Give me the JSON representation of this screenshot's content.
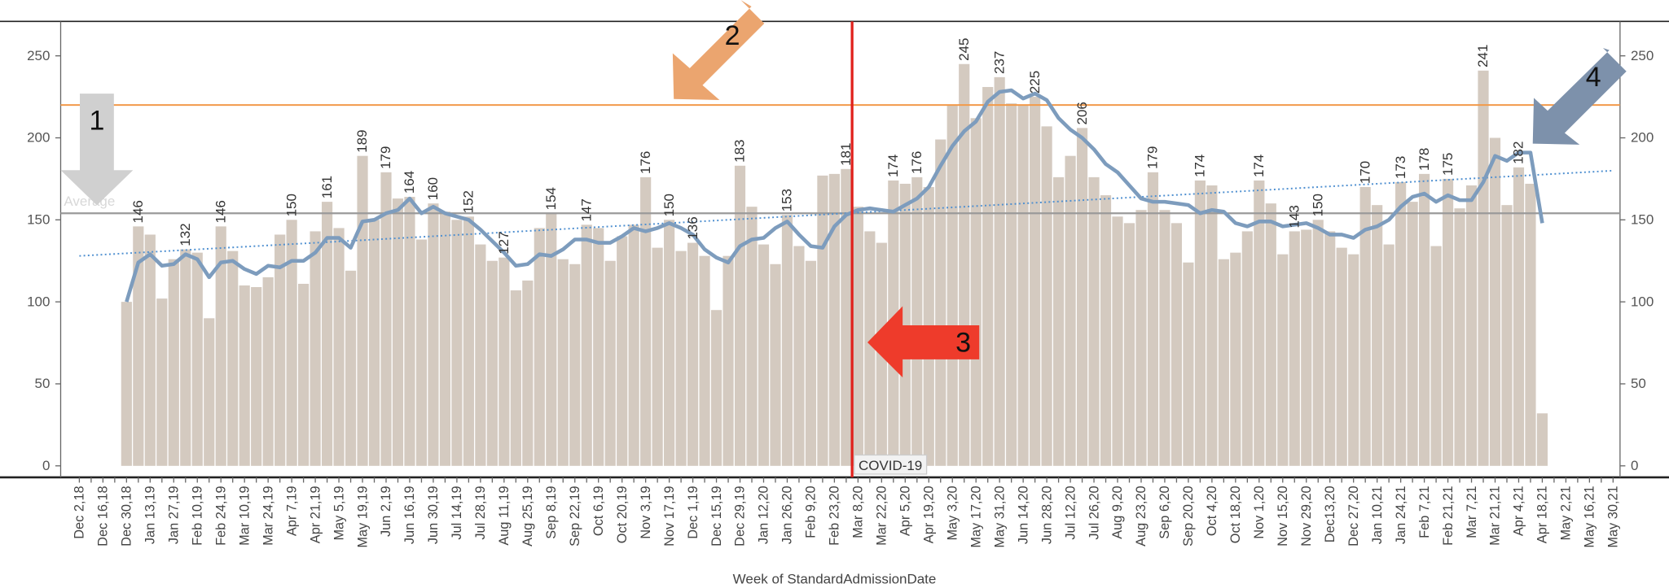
{
  "chart_data": {
    "type": "bar",
    "x_axis_label": "Week of StandardAdmissionDate",
    "categories": [
      "Dec 2,18",
      null,
      "Dec 16,18",
      null,
      "Dec 30,18",
      null,
      "Jan 13,19",
      null,
      "Jan 27,19",
      null,
      "Feb 10,19",
      null,
      "Feb 24,19",
      null,
      "Mar 10,19",
      null,
      "Mar 24,19",
      null,
      "Apr 7,19",
      null,
      "Apr 21,19",
      null,
      "May 5,19",
      null,
      "May 19,19",
      null,
      "Jun 2,19",
      null,
      "Jun 16,19",
      null,
      "Jun 30,19",
      null,
      "Jul 14,19",
      null,
      "Jul 28,19",
      null,
      "Aug 11,19",
      null,
      "Aug 25,19",
      null,
      "Sep 8,19",
      null,
      "Sep 22,19",
      null,
      "Oct 6,19",
      null,
      "Oct 20,19",
      null,
      "Nov 3,19",
      null,
      "Nov 17,19",
      null,
      "Dec 1,19",
      null,
      "Dec 15,19",
      null,
      "Dec 29,19",
      null,
      "Jan 12,20",
      null,
      "Jan 26,20",
      null,
      "Feb 9,20",
      null,
      "Feb 23,20",
      null,
      "Mar 8,20",
      null,
      "Mar 22,20",
      null,
      "Apr 5,20",
      null,
      "Apr 19,20",
      null,
      "May 3,20",
      null,
      "May 17,20",
      null,
      "May 31,20",
      null,
      "Jun 14,20",
      null,
      "Jun 28,20",
      null,
      "Jul 12,20",
      null,
      "Jul 26,20",
      null,
      "Aug 9,20",
      null,
      "Aug 23,20",
      null,
      "Sep 6,20",
      null,
      "Sep 20,20",
      null,
      "Oct 4,20",
      null,
      "Oct 18,20",
      null,
      "Nov 1,20",
      null,
      "Nov 15,20",
      null,
      "Nov 29,20",
      null,
      "Dec13,20",
      null,
      "Dec 27,20",
      null,
      "Jan 10,21",
      null,
      "Jan 24,21",
      null,
      "Feb 7,21",
      null,
      "Feb 21,21",
      null,
      "Mar 7,21",
      null,
      "Mar 21,21",
      null,
      "Apr 4,21",
      null,
      "Apr 18,21",
      null,
      "May 2,21",
      null,
      "May 16,21",
      null,
      "May 30,21"
    ],
    "series": [
      {
        "type": "bar",
        "color": "#d4cac0",
        "values": [
          null,
          null,
          null,
          null,
          100,
          146,
          141,
          102,
          126,
          132,
          130,
          90,
          146,
          131,
          110,
          109,
          115,
          141,
          150,
          111,
          143,
          161,
          145,
          119,
          189,
          150,
          179,
          163,
          164,
          138,
          160,
          155,
          150,
          152,
          135,
          125,
          127,
          107,
          113,
          145,
          154,
          126,
          123,
          147,
          145,
          125,
          140,
          147,
          176,
          133,
          150,
          131,
          136,
          128,
          95,
          128,
          183,
          158,
          135,
          123,
          153,
          134,
          125,
          177,
          178,
          181,
          158,
          143,
          136,
          174,
          172,
          176,
          170,
          199,
          220,
          245,
          212,
          231,
          237,
          221,
          220,
          225,
          207,
          176,
          189,
          206,
          176,
          165,
          152,
          148,
          156,
          179,
          156,
          148,
          124,
          174,
          171,
          126,
          130,
          143,
          174,
          160,
          129,
          143,
          144,
          150,
          143,
          133,
          129,
          170,
          159,
          135,
          173,
          161,
          178,
          134,
          175,
          157,
          171,
          241,
          200,
          159,
          182,
          172,
          32,
          null,
          null,
          null,
          null,
          null,
          null
        ],
        "value_labels": [
          null,
          null,
          null,
          null,
          null,
          "146",
          null,
          null,
          null,
          "132",
          null,
          null,
          "146",
          null,
          null,
          null,
          null,
          null,
          "150",
          null,
          null,
          "161",
          null,
          null,
          "189",
          null,
          "179",
          null,
          "164",
          null,
          "160",
          null,
          null,
          "152",
          null,
          null,
          "127",
          null,
          null,
          null,
          "154",
          null,
          null,
          "147",
          null,
          null,
          null,
          null,
          "176",
          null,
          "150",
          null,
          "136",
          null,
          null,
          null,
          "183",
          null,
          null,
          null,
          "153",
          null,
          null,
          null,
          null,
          "181",
          null,
          null,
          null,
          "174",
          null,
          "176",
          null,
          null,
          null,
          "245",
          null,
          null,
          "237",
          null,
          null,
          "225",
          null,
          null,
          null,
          "206",
          null,
          null,
          null,
          null,
          null,
          "179",
          null,
          null,
          null,
          "174",
          null,
          null,
          null,
          null,
          "174",
          null,
          null,
          "143",
          null,
          "150",
          null,
          null,
          null,
          "170",
          null,
          null,
          "173",
          null,
          "178",
          null,
          "175",
          null,
          null,
          "241",
          null,
          null,
          "182",
          null,
          null,
          null,
          null,
          null,
          null,
          null,
          null
        ]
      },
      {
        "type": "line",
        "color": "#7d9cbd",
        "values": [
          null,
          null,
          null,
          null,
          100,
          124,
          129,
          122,
          123,
          129,
          126,
          115,
          124,
          125,
          120,
          117,
          122,
          121,
          125,
          125,
          130,
          139,
          139,
          133,
          149,
          150,
          154,
          156,
          163,
          154,
          158,
          154,
          152,
          150,
          144,
          137,
          130,
          122,
          123,
          129,
          128,
          132,
          138,
          138,
          136,
          136,
          140,
          145,
          143,
          145,
          148,
          145,
          141,
          132,
          127,
          124,
          134,
          138,
          139,
          145,
          149,
          141,
          134,
          133,
          146,
          153,
          156,
          157,
          156,
          155,
          159,
          163,
          170,
          183,
          195,
          204,
          210,
          222,
          228,
          229,
          224,
          227,
          223,
          212,
          205,
          200,
          193,
          184,
          179,
          171,
          163,
          161,
          161,
          160,
          159,
          154,
          156,
          155,
          148,
          146,
          149,
          149,
          146,
          147,
          148,
          145,
          141,
          141,
          139,
          144,
          146,
          150,
          158,
          164,
          166,
          161,
          165,
          162,
          162,
          173,
          189,
          186,
          191,
          191,
          148,
          null,
          null,
          null,
          null,
          null,
          null
        ]
      }
    ],
    "trend_line": {
      "color": "#4e8fd0",
      "values": [
        128,
        180
      ]
    },
    "average_line": {
      "label": "Average",
      "value": 154,
      "color": "#9a9a9a"
    },
    "reference_line": {
      "value": 220,
      "color": "#f29a4a"
    },
    "covid_line": {
      "category": "Mar 8,20",
      "label": "COVID-19",
      "color": "#e0201b"
    },
    "annotations": [
      {
        "label": "1"
      },
      {
        "label": "2"
      },
      {
        "label": "3"
      },
      {
        "label": "4"
      }
    ],
    "ylim": [
      -7,
      271
    ],
    "yticks": [
      0,
      50,
      100,
      150,
      200,
      250
    ],
    "y2lim": [
      -7,
      271
    ],
    "y2ticks": [
      0,
      50,
      100,
      150,
      200,
      250
    ]
  }
}
